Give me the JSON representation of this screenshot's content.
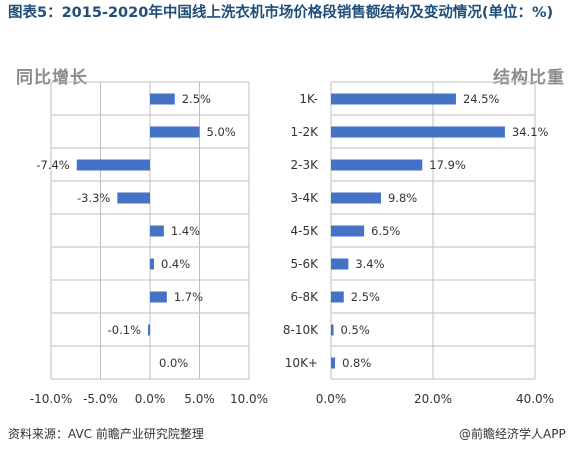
{
  "title": "图表5：2015-2020年中国线上洗衣机市场价格段销售额结构及变动情况(单位：%)",
  "panels": {
    "left_label": "同比增长",
    "right_label": "结构比重"
  },
  "footer": {
    "source": "资料来源：AVC 前瞻产业研究院整理",
    "brand": "@前瞻经济学人APP"
  },
  "colors": {
    "bar": "#4472c4",
    "title": "#1f4e79",
    "grid": "#bfbfbf"
  },
  "chart_data": [
    {
      "type": "bar",
      "orientation": "horizontal",
      "title": "同比增长",
      "categories": [
        "1K-",
        "1-2K",
        "2-3K",
        "3-4K",
        "4-5K",
        "5-6K",
        "6-8K",
        "8-10K",
        "10K+"
      ],
      "values": [
        2.5,
        5.0,
        -7.4,
        -3.3,
        1.4,
        0.4,
        1.7,
        -0.1,
        0.0
      ],
      "data_labels": [
        "2.5%",
        "5.0%",
        "-7.4%",
        "-3.3%",
        "1.4%",
        "0.4%",
        "1.7%",
        "-0.1%",
        "0.0%"
      ],
      "xlim": [
        -10,
        10
      ],
      "xticks": [
        -10,
        -5,
        0,
        5,
        10
      ],
      "xtick_labels": [
        "-10.0%",
        "-5.0%",
        "0.0%",
        "5.0%",
        "10.0%"
      ],
      "grid": true
    },
    {
      "type": "bar",
      "orientation": "horizontal",
      "title": "结构比重",
      "categories": [
        "1K-",
        "1-2K",
        "2-3K",
        "3-4K",
        "4-5K",
        "5-6K",
        "6-8K",
        "8-10K",
        "10K+"
      ],
      "values": [
        24.5,
        34.1,
        17.9,
        9.8,
        6.5,
        3.4,
        2.5,
        0.5,
        0.8
      ],
      "data_labels": [
        "24.5%",
        "34.1%",
        "17.9%",
        "9.8%",
        "6.5%",
        "3.4%",
        "2.5%",
        "0.5%",
        "0.8%"
      ],
      "xlim": [
        0,
        40
      ],
      "xticks": [
        0,
        20,
        40
      ],
      "xtick_labels": [
        "0.0%",
        "20.0%",
        "40.0%"
      ],
      "grid": true
    }
  ]
}
